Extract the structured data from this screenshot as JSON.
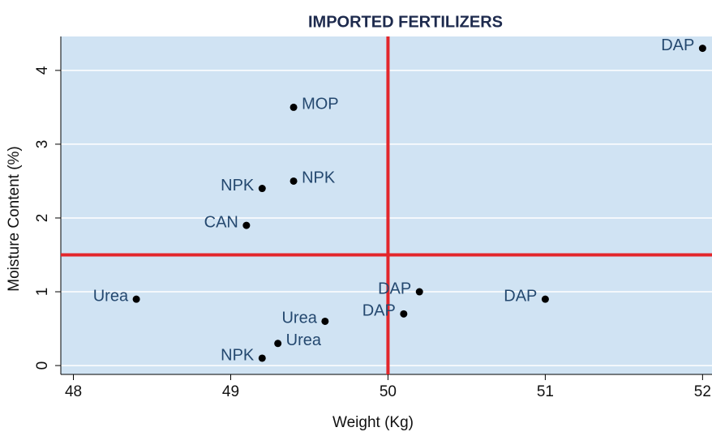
{
  "chart_data": {
    "type": "scatter",
    "title": "IMPORTED FERTILIZERS",
    "x_label": "Weight (Kg)",
    "y_label": "Moisture Content (%)",
    "x": [
      52.0,
      49.4,
      49.4,
      49.2,
      49.1,
      48.4,
      50.2,
      51.0,
      50.1,
      49.6,
      49.3,
      49.2
    ],
    "y": [
      4.3,
      3.5,
      2.5,
      2.4,
      1.9,
      0.9,
      1.0,
      0.9,
      0.7,
      0.6,
      0.3,
      0.1
    ],
    "labels": [
      "DAP",
      "MOP",
      "NPK",
      "NPK",
      "CAN",
      "Urea",
      "DAP",
      "DAP",
      "DAP",
      "Urea",
      "Urea",
      "NPK"
    ],
    "label_positions": [
      "left",
      "right",
      "right",
      "left",
      "left",
      "left",
      "left",
      "left",
      "left",
      "left",
      "right",
      "left"
    ],
    "color": "#000000",
    "label_color": "#24486f",
    "background": "#d0e3f3",
    "xlim": [
      47.92,
      52.06
    ],
    "ylim": [
      -0.12,
      4.46
    ],
    "xticks": [
      48,
      49,
      50,
      51,
      52
    ],
    "yticks": [
      0,
      1,
      2,
      3,
      4
    ],
    "grid": true,
    "reference_lines": {
      "x": 50,
      "y": 1.5,
      "color": "#e3262b"
    }
  }
}
